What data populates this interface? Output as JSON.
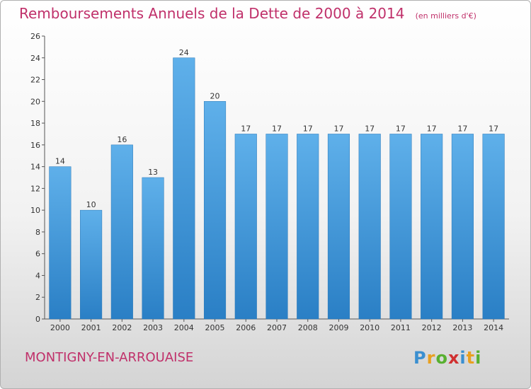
{
  "header": {
    "title": "Remboursements Annuels de la Dette de 2000 à 2014",
    "unit": "(en milliers d'€)"
  },
  "footer": {
    "commune": "MONTIGNY-EN-ARROUAISE",
    "logo": [
      "P",
      "r",
      "o",
      "x",
      "i",
      "t",
      "i"
    ]
  },
  "colors": {
    "bar_light": "#5fb0ea",
    "bar_dark": "#2a7fc5",
    "title": "#c0306a"
  },
  "chart_data": {
    "type": "bar",
    "title": "Remboursements Annuels de la Dette de 2000 à 2014",
    "xlabel": "",
    "ylabel": "",
    "categories": [
      "2000",
      "2001",
      "2002",
      "2003",
      "2004",
      "2005",
      "2006",
      "2007",
      "2008",
      "2009",
      "2010",
      "2011",
      "2012",
      "2013",
      "2014"
    ],
    "values": [
      14,
      10,
      16,
      13,
      24,
      20,
      17,
      17,
      17,
      17,
      17,
      17,
      17,
      17,
      17
    ],
    "ylim": [
      0,
      26
    ],
    "yticks": [
      0,
      2,
      4,
      6,
      8,
      10,
      12,
      14,
      16,
      18,
      20,
      22,
      24,
      26
    ],
    "grid": false
  }
}
